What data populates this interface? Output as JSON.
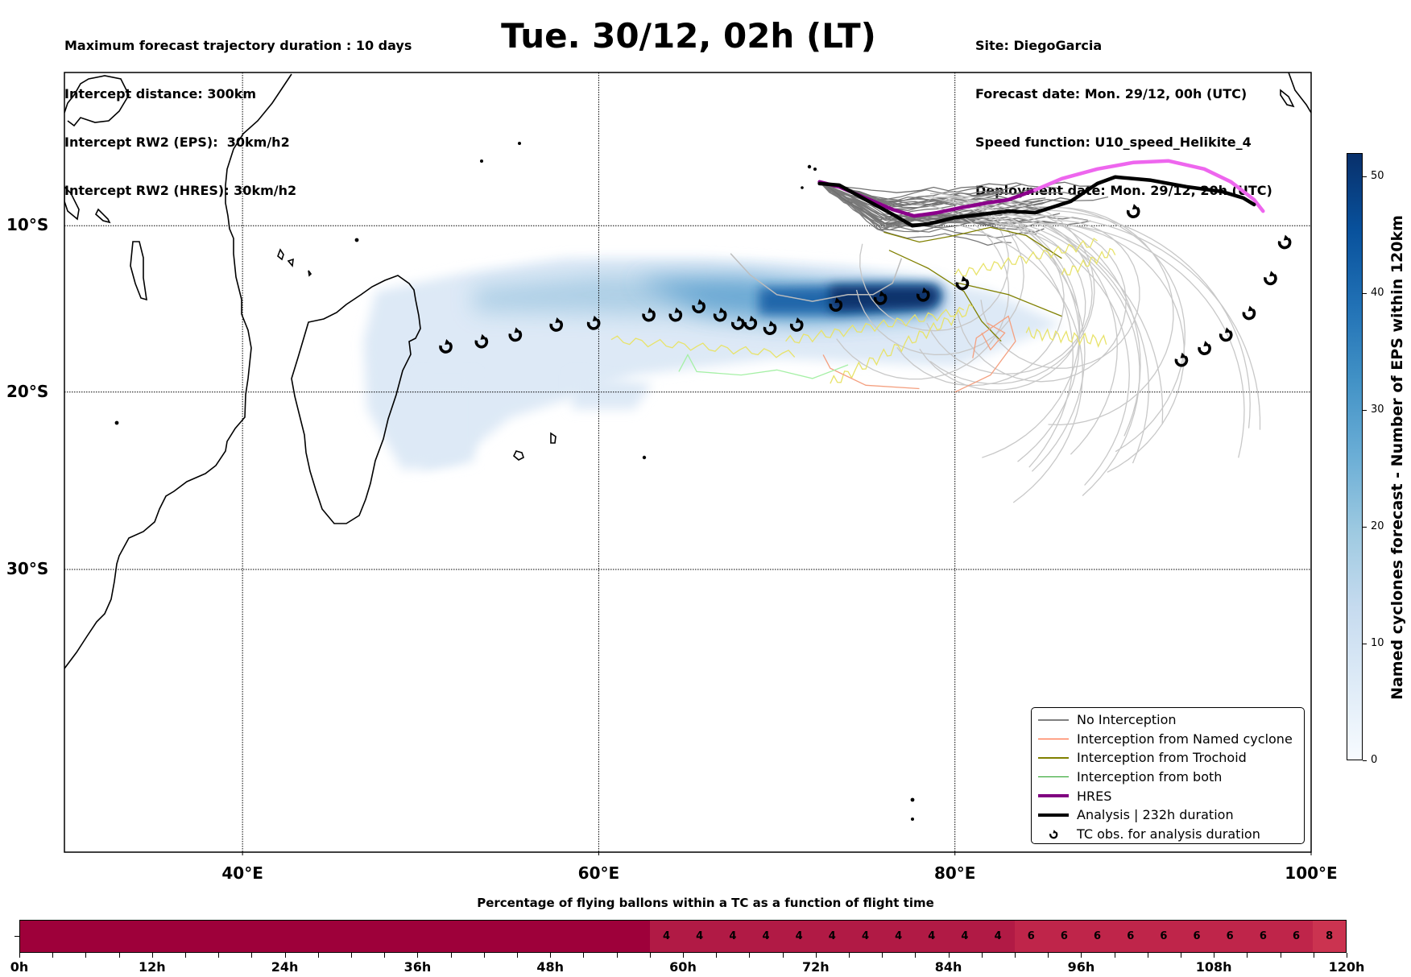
{
  "header": {
    "title": "Tue. 30/12, 02h (LT)",
    "left_lines": [
      "Maximum forecast trajectory duration : 10 days",
      "Intercept distance: 300km",
      "Intercept RW2 (EPS):  30km/h2",
      "Intercept RW2 (HRES): 30km/h2"
    ],
    "right_lines": [
      "Site: DiegoGarcia",
      "Forecast date: Mon. 29/12, 00h (UTC)",
      "Speed function: U10_speed_Helikite_4",
      "Deployment date: Mon. 29/12, 20h (UTC)"
    ]
  },
  "map": {
    "lon_range": [
      30,
      100
    ],
    "lat_range": [
      -0.5,
      -44
    ],
    "lon_ticks": [
      {
        "value": 40,
        "label": "40°E"
      },
      {
        "value": 60,
        "label": "60°E"
      },
      {
        "value": 80,
        "label": "80°E"
      },
      {
        "value": 100,
        "label": "100°E"
      }
    ],
    "lat_ticks": [
      {
        "value": -10,
        "label": "10°S"
      },
      {
        "value": -20,
        "label": "20°S"
      },
      {
        "value": -30,
        "label": "30°S"
      }
    ],
    "launch_site": {
      "lon": 72.4,
      "lat": -7.3
    },
    "hres_track": [
      [
        72.4,
        -7.3
      ],
      [
        73.5,
        -7.6
      ],
      [
        75,
        -8.3
      ],
      [
        76.5,
        -9.0
      ],
      [
        77.7,
        -9.4
      ],
      [
        79,
        -9.2
      ],
      [
        80.3,
        -8.9
      ],
      [
        81.8,
        -8.6
      ],
      [
        83,
        -8.4
      ],
      [
        84.5,
        -7.8
      ],
      [
        86,
        -7.1
      ],
      [
        88,
        -6.5
      ],
      [
        90,
        -6.1
      ],
      [
        92,
        -6.0
      ],
      [
        94,
        -6.5
      ],
      [
        95.5,
        -7.3
      ],
      [
        96.8,
        -8.4
      ],
      [
        97.3,
        -9.1
      ]
    ],
    "hres_split_index": 9,
    "analysis_track": [
      [
        72.4,
        -7.4
      ],
      [
        73.5,
        -7.5
      ],
      [
        75,
        -8.4
      ],
      [
        76.5,
        -9.3
      ],
      [
        77.6,
        -10.0
      ],
      [
        78.5,
        -9.9
      ],
      [
        80,
        -9.5
      ],
      [
        81.5,
        -9.3
      ],
      [
        83,
        -9.1
      ],
      [
        84.5,
        -9.2
      ],
      [
        86.5,
        -8.5
      ],
      [
        88,
        -7.4
      ],
      [
        89,
        -7.0
      ],
      [
        91,
        -7.2
      ],
      [
        93,
        -7.6
      ],
      [
        95,
        -7.9
      ],
      [
        96.2,
        -8.3
      ],
      [
        96.8,
        -8.7
      ]
    ],
    "tc_obs": [
      [
        51.4,
        -17.3
      ],
      [
        53.4,
        -17.0
      ],
      [
        55.3,
        -16.6
      ],
      [
        57.6,
        -16.0
      ],
      [
        59.7,
        -15.9
      ],
      [
        62.8,
        -15.4
      ],
      [
        64.3,
        -15.4
      ],
      [
        65.6,
        -14.9
      ],
      [
        66.8,
        -15.4
      ],
      [
        67.8,
        -15.9
      ],
      [
        68.5,
        -15.9
      ],
      [
        69.6,
        -16.2
      ],
      [
        71.1,
        -16.0
      ],
      [
        73.3,
        -14.8
      ],
      [
        75.8,
        -14.4
      ],
      [
        78.2,
        -14.2
      ],
      [
        80.4,
        -13.5
      ],
      [
        90.0,
        -9.1
      ],
      [
        92.7,
        -18.1
      ],
      [
        94.0,
        -17.4
      ],
      [
        95.2,
        -16.6
      ],
      [
        96.5,
        -15.3
      ],
      [
        97.7,
        -13.2
      ],
      [
        98.5,
        -11.0
      ]
    ],
    "density_core": {
      "lon": [
        70,
        79
      ],
      "lat": -14.3
    },
    "colors": {
      "no_interception": "#808080",
      "named_cyclone": "#ff6a3d",
      "trochoid": "#808000",
      "both": "#2ca02c",
      "hres": "#8b008b",
      "hres_later": "#ee66ee",
      "analysis": "#000000",
      "density_max": "#08306b",
      "density_min": "#deebf7"
    }
  },
  "legend": {
    "items": [
      {
        "label": "No Interception",
        "type": "thin",
        "color": "#808080"
      },
      {
        "label": "Interception from Named cyclone",
        "type": "thin",
        "color": "#ff5522"
      },
      {
        "label": "Interception from Trochoid",
        "type": "thin",
        "color": "#808000"
      },
      {
        "label": "Interception from both",
        "type": "thin",
        "color": "#1f9e1f"
      },
      {
        "label": "HRES",
        "type": "thick",
        "color": "#800080"
      },
      {
        "label": "Analysis | 232h duration",
        "type": "thick",
        "color": "#000000"
      },
      {
        "label": "TC obs. for analysis duration",
        "type": "marker",
        "color": "#000000"
      }
    ]
  },
  "colorbar": {
    "title": "Named cyclones forecast - Number of EPS within 120km",
    "range": [
      0,
      52
    ],
    "ticks": [
      0,
      10,
      20,
      30,
      40,
      50
    ],
    "colors": [
      "#f7fbff",
      "#deebf7",
      "#c6dbef",
      "#9ecae1",
      "#6baed6",
      "#4292c6",
      "#2171b5",
      "#08519c",
      "#08306b"
    ]
  },
  "time_bar": {
    "title": "Percentage of flying ballons within a TC as a function of flight time",
    "range_hours": [
      0,
      120
    ],
    "bin_hours": 3,
    "values": [
      0,
      0,
      0,
      0,
      0,
      0,
      0,
      0,
      0,
      0,
      0,
      0,
      0,
      0,
      0,
      0,
      0,
      0,
      0,
      4,
      4,
      4,
      4,
      4,
      4,
      4,
      4,
      4,
      4,
      4,
      6,
      6,
      6,
      6,
      6,
      6,
      6,
      6,
      6,
      8
    ],
    "colors": {
      "0": "#9e003a",
      "4": "#b11a45",
      "6": "#bf254a",
      "8": "#cb3350"
    },
    "tick_labels": [
      "0h",
      "12h",
      "24h",
      "36h",
      "48h",
      "60h",
      "72h",
      "84h",
      "96h",
      "108h",
      "120h"
    ]
  }
}
